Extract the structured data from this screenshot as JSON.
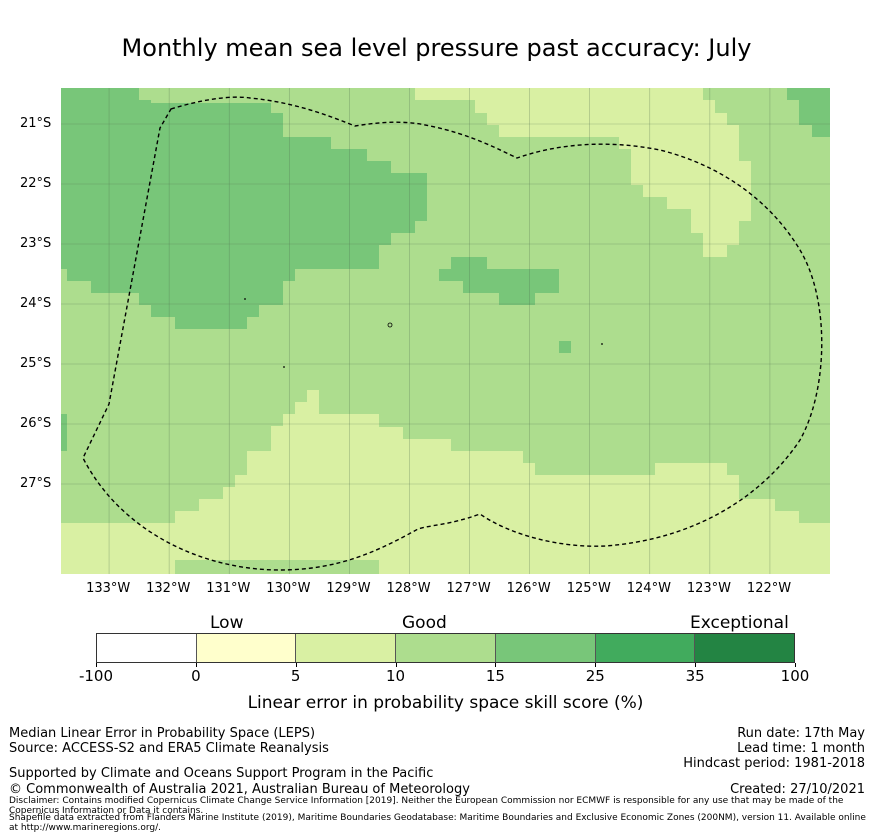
{
  "title": "Monthly mean sea level pressure past accuracy: July",
  "map": {
    "lon_range": [
      -133.8,
      -121.0
    ],
    "lat_range": [
      -28.5,
      -20.4
    ],
    "x_ticks": [
      "133°W",
      "132°W",
      "131°W",
      "130°W",
      "129°W",
      "128°W",
      "127°W",
      "126°W",
      "125°W",
      "124°W",
      "123°W",
      "122°W"
    ],
    "x_tick_values": [
      -133,
      -132,
      -131,
      -130,
      -129,
      -128,
      -127,
      -126,
      -125,
      -124,
      -123,
      -122
    ],
    "y_ticks": [
      "21°S",
      "22°S",
      "23°S",
      "24°S",
      "25°S",
      "26°S",
      "27°S"
    ],
    "y_tick_values": [
      -21,
      -22,
      -23,
      -24,
      -25,
      -26,
      -27
    ],
    "colors": {
      "c5_10": "#d9f0a3",
      "c10_15": "#addd8e",
      "c15_25": "#78c679",
      "grid": "#5a7a5a",
      "boundary": "#000000"
    },
    "region_note": "Pitcairn Islands EEZ (dashed boundary)"
  },
  "colorbar": {
    "category_labels": [
      "Low",
      "Good",
      "Exceptional"
    ],
    "ticks": [
      "-100",
      "0",
      "5",
      "10",
      "15",
      "25",
      "35",
      "100"
    ],
    "colors": [
      "#ffffff",
      "#ffffcc",
      "#d9f0a3",
      "#addd8e",
      "#78c679",
      "#41ab5d",
      "#238443"
    ],
    "xlabel": "Linear error in probability space skill score (%)"
  },
  "footer": {
    "left_line1": "Median Linear Error in Probability Space (LEPS)",
    "left_line2": "Source: ACCESS-S2 and ERA5 Climate Reanalysis",
    "support": "Supported by Climate and Oceans Support Program in the Pacific",
    "copyright": "© Commonwealth of Australia 2021, Australian Bureau of Meteorology",
    "run_date": "Run date: 17th May",
    "lead_time": "Lead time: 1 month",
    "hindcast": "Hindcast period: 1981-2018",
    "created": "Created: 27/10/2021",
    "disclaimer": "Disclaimer: Contains modified Copernicus Climate Change Service Information [2019]. Neither the European Commission nor ECMWF is responsible for any use that may be made of the Copernicus Information or Data it contains.",
    "shapefile": "Shapefile data extracted from Flanders Marine Institute (2019), Maritime Boundaries Geodatabase: Maritime Boundaries and Exclusive Economic Zones (200NM), version 11. Available online at http://www.marineregions.org/."
  }
}
